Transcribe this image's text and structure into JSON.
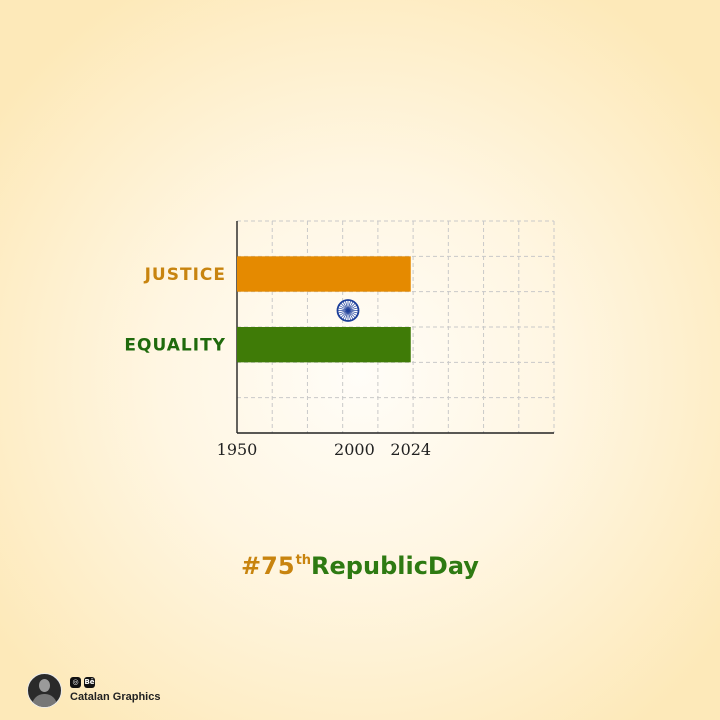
{
  "chart_data": {
    "type": "bar",
    "orientation": "horizontal",
    "categories": [
      "JUSTICE",
      "EQUALITY"
    ],
    "values": [
      2024,
      2024
    ],
    "x_start": 1950,
    "xlim": [
      1950,
      2085
    ],
    "xticks": [
      "1950",
      "2000",
      "2024"
    ],
    "colors": [
      "#e58a00",
      "#3f7b07"
    ],
    "label_colors": [
      "#c8840f",
      "#1f6a0c"
    ],
    "center_emblem": "ashoka-chakra",
    "grid": true
  },
  "hashtag": {
    "prefix": "#75",
    "sup": "th",
    "suffix": "RepublicDay"
  },
  "credit": {
    "name": "Catalan Graphics",
    "icons": [
      "instagram-icon",
      "behance-icon"
    ],
    "behance_text": "Bē"
  }
}
